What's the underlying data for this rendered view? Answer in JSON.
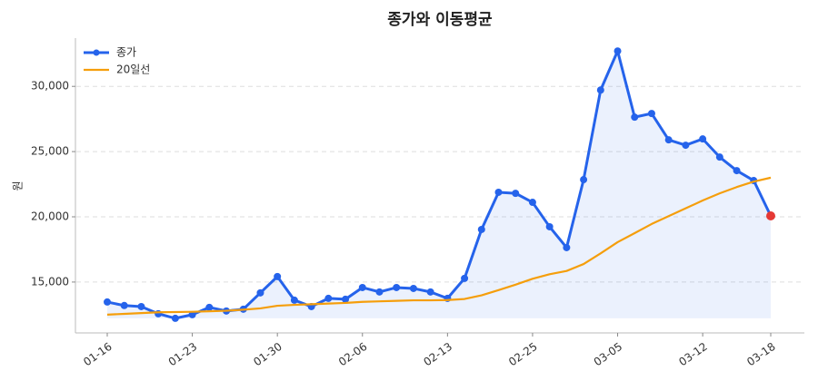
{
  "chart_data": {
    "type": "line",
    "title": "종가와 이동평균",
    "y_label": "원",
    "categories": [
      "01-16",
      null,
      null,
      null,
      null,
      "01-23",
      null,
      null,
      null,
      null,
      "01-30",
      null,
      null,
      null,
      null,
      "02-06",
      null,
      null,
      null,
      null,
      "02-13",
      null,
      null,
      null,
      null,
      "02-25",
      null,
      null,
      null,
      null,
      "03-05",
      null,
      null,
      null,
      null,
      "03-12",
      null,
      null,
      null,
      "03-18"
    ],
    "series": [
      {
        "name": "종가",
        "color": "#2563eb",
        "markers": true,
        "fill": true,
        "last_point_color": "#e53935",
        "values": [
          13470,
          13200,
          13120,
          12570,
          12220,
          12500,
          13060,
          12780,
          12920,
          14170,
          15420,
          13610,
          13120,
          13750,
          13680,
          14580,
          14240,
          14580,
          14510,
          14240,
          13750,
          15280,
          19030,
          21880,
          21800,
          21110,
          19240,
          17640,
          22850,
          29720,
          32710,
          27640,
          27920,
          25900,
          25490,
          25970,
          24580,
          23540,
          22780,
          20070
        ]
      },
      {
        "name": "20일선",
        "color": "#f59e0b",
        "markers": false,
        "fill": false,
        "values": [
          12500,
          12560,
          12620,
          12680,
          12700,
          12720,
          12760,
          12800,
          12880,
          12980,
          13180,
          13250,
          13300,
          13350,
          13400,
          13480,
          13520,
          13560,
          13600,
          13600,
          13620,
          13700,
          13980,
          14380,
          14800,
          15250,
          15600,
          15850,
          16380,
          17200,
          18060,
          18750,
          19450,
          20050,
          20650,
          21250,
          21800,
          22280,
          22700,
          23000
        ]
      }
    ],
    "ylim": [
      11100,
      33700
    ],
    "yticks": [
      {
        "value": 15000,
        "label": "15,000"
      },
      {
        "value": 20000,
        "label": "20,000"
      },
      {
        "value": 25000,
        "label": "25,000"
      },
      {
        "value": 30000,
        "label": "30,000"
      }
    ],
    "grid": true,
    "legend": "upper-left"
  }
}
